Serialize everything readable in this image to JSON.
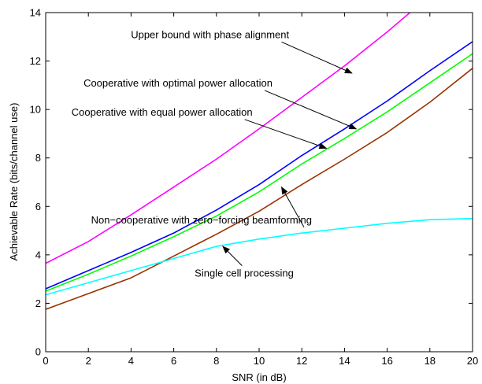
{
  "chart_data": {
    "type": "line",
    "title": "",
    "xlabel": "SNR (in dB)",
    "ylabel": "Achievable Rate (bits/channel use)",
    "xlim": [
      0,
      20
    ],
    "ylim": [
      0,
      14
    ],
    "x_ticks": [
      0,
      2,
      4,
      6,
      8,
      10,
      12,
      14,
      16,
      18,
      20
    ],
    "y_ticks": [
      0,
      2,
      4,
      6,
      8,
      10,
      12,
      14
    ],
    "grid": false,
    "legend": "none",
    "x": [
      0,
      2,
      4,
      6,
      8,
      10,
      12,
      14,
      16,
      18,
      20
    ],
    "series": [
      {
        "name": "Upper bound with phase alignment",
        "color": "#ff00ff",
        "values": [
          3.65,
          4.55,
          5.65,
          6.8,
          7.95,
          9.2,
          10.5,
          11.8,
          13.2,
          14.7,
          null
        ]
      },
      {
        "name": "Cooperative with optimal power allocation",
        "color": "#0000ff",
        "values": [
          2.6,
          3.35,
          4.1,
          4.9,
          5.85,
          6.9,
          8.1,
          9.2,
          10.35,
          11.6,
          12.8
        ]
      },
      {
        "name": "Cooperative with equal power allocation",
        "color": "#00ff00",
        "values": [
          2.5,
          3.2,
          3.95,
          4.75,
          5.6,
          6.6,
          7.75,
          8.8,
          9.9,
          11.1,
          12.3
        ]
      },
      {
        "name": "Non−cooperative with zero−forcing beamforming",
        "color": "#993300",
        "values": [
          1.75,
          2.4,
          3.05,
          3.95,
          4.85,
          5.8,
          6.9,
          7.95,
          9.05,
          10.3,
          11.7
        ]
      },
      {
        "name": "Single cell processing",
        "color": "#00ffff",
        "values": [
          2.35,
          2.85,
          3.35,
          3.85,
          4.35,
          4.65,
          4.9,
          5.1,
          5.3,
          5.45,
          5.5
        ]
      }
    ],
    "annotations": [
      {
        "text": "Upper bound with phase alignment",
        "tx": 7.7,
        "ty": 12.95,
        "ax": 14.35,
        "ay": 11.5
      },
      {
        "text": "Cooperative with optimal power allocation",
        "tx": 6.2,
        "ty": 10.95,
        "ax": 14.55,
        "ay": 9.2
      },
      {
        "text": "Cooperative with equal power allocation",
        "tx": 5.45,
        "ty": 9.75,
        "ax": 13.15,
        "ay": 8.4
      },
      {
        "text": "Non−cooperative with zero−forcing beamforming",
        "tx": 7.3,
        "ty": 5.3,
        "ax": 11.05,
        "ay": 6.8
      },
      {
        "text": "Single cell processing",
        "tx": 9.3,
        "ty": 3.1,
        "ax": 8.3,
        "ay": 4.35
      }
    ]
  }
}
